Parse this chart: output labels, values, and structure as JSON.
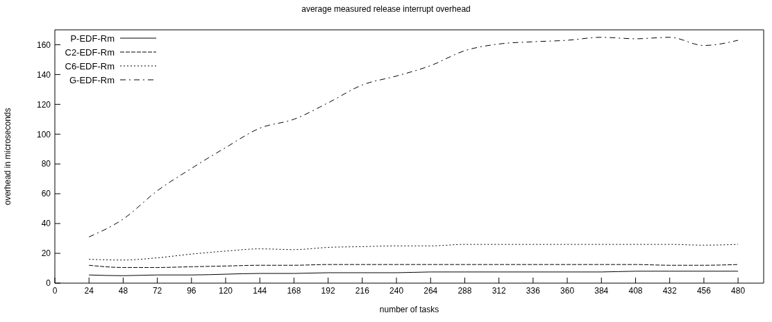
{
  "chart_data": {
    "type": "line",
    "title": "average measured release interrupt overhead",
    "xlabel": "number of tasks",
    "ylabel": "overhead in microseconds",
    "x": [
      24,
      48,
      72,
      96,
      120,
      144,
      168,
      192,
      216,
      240,
      264,
      288,
      312,
      336,
      360,
      384,
      408,
      432,
      456,
      480
    ],
    "series": [
      {
        "name": "P-EDF-Rm",
        "color": "#000000",
        "line_style": "solid",
        "values": [
          5.5,
          5,
          5.5,
          5.5,
          6,
          6.5,
          6.5,
          7,
          7,
          7,
          7.5,
          7.5,
          7.5,
          7.5,
          7.5,
          7.5,
          8,
          8,
          8,
          8
        ]
      },
      {
        "name": "C2-EDF-Rm",
        "color": "#000000",
        "line_style": "dashed",
        "values": [
          12,
          10.5,
          10.5,
          11,
          11.5,
          12,
          12,
          12.5,
          12.5,
          12.5,
          12.5,
          12.5,
          12.5,
          12.5,
          12.5,
          12.5,
          12.5,
          12,
          12,
          12.5
        ]
      },
      {
        "name": "C6-EDF-Rm",
        "color": "#000000",
        "line_style": "dotted",
        "values": [
          16,
          15.5,
          17,
          19.5,
          21.5,
          23,
          22.5,
          24,
          24.5,
          25,
          25,
          26,
          26,
          26,
          26,
          26,
          26,
          26,
          25.5,
          26
        ]
      },
      {
        "name": "G-EDF-Rm",
        "color": "#000000",
        "line_style": "dashdot",
        "values": [
          31,
          43,
          62,
          77,
          91,
          104,
          110,
          121,
          133,
          139,
          146,
          156,
          160.5,
          162,
          163,
          165,
          164,
          165,
          159.5,
          163
        ]
      }
    ],
    "xlim": [
      0,
      498
    ],
    "xticks": [
      0,
      24,
      48,
      72,
      96,
      120,
      144,
      168,
      192,
      216,
      240,
      264,
      288,
      312,
      336,
      360,
      384,
      408,
      432,
      456,
      480
    ],
    "ylim": [
      0,
      170
    ],
    "yticks": [
      0,
      20,
      40,
      60,
      80,
      100,
      120,
      140,
      160
    ],
    "grid": false,
    "legend": "top left",
    "marker": "none"
  }
}
